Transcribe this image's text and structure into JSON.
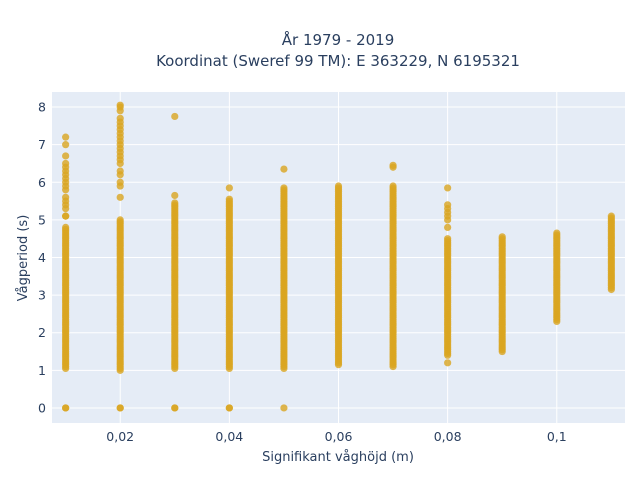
{
  "chart_data": {
    "type": "scatter",
    "title_line1": "År 1979 - 2019",
    "title_line2": "Koordinat (Sweref 99 TM): E 363229, N 6195321",
    "xlabel": "Signifikant våghöjd (m)",
    "ylabel": "Vågperiod (s)",
    "xlim": [
      0.0075,
      0.1125
    ],
    "ylim": [
      -0.4,
      8.4
    ],
    "x_ticks": [
      {
        "value": 0.02,
        "label": "0,02"
      },
      {
        "value": 0.04,
        "label": "0,04"
      },
      {
        "value": 0.06,
        "label": "0,06"
      },
      {
        "value": 0.08,
        "label": "0,08"
      },
      {
        "value": 0.1,
        "label": "0,1"
      }
    ],
    "y_ticks": [
      {
        "value": 0,
        "label": "0"
      },
      {
        "value": 1,
        "label": "1"
      },
      {
        "value": 2,
        "label": "2"
      },
      {
        "value": 3,
        "label": "3"
      },
      {
        "value": 4,
        "label": "4"
      },
      {
        "value": 5,
        "label": "5"
      },
      {
        "value": 6,
        "label": "6"
      },
      {
        "value": 7,
        "label": "7"
      },
      {
        "value": 8,
        "label": "8"
      }
    ],
    "grid": true,
    "legend": "none",
    "marker_color": "#DAA520",
    "background_color": "#E5ECF6",
    "series": [
      {
        "x": 0.01,
        "range": [
          1.05,
          4.8
        ],
        "points": [
          0,
          0,
          5.1,
          5.1,
          5.3,
          5.4,
          5.5,
          5.6,
          5.8,
          5.9,
          6.0,
          6.1,
          6.2,
          6.3,
          6.4,
          6.5,
          6.7,
          7.0,
          7.2
        ]
      },
      {
        "x": 0.02,
        "range": [
          1.0,
          5.0
        ],
        "points": [
          0,
          0,
          5.6,
          5.9,
          6.0,
          6.2,
          6.3,
          6.5,
          6.6,
          6.7,
          6.8,
          6.9,
          7.0,
          7.1,
          7.2,
          7.3,
          7.4,
          7.5,
          7.6,
          7.7,
          7.9,
          8.0,
          8.05
        ]
      },
      {
        "x": 0.03,
        "range": [
          1.05,
          5.45
        ],
        "points": [
          0,
          0,
          5.65,
          7.75
        ]
      },
      {
        "x": 0.04,
        "range": [
          1.05,
          5.55
        ],
        "points": [
          0,
          0,
          5.85
        ]
      },
      {
        "x": 0.05,
        "range": [
          1.05,
          5.85
        ],
        "points": [
          0,
          6.35
        ]
      },
      {
        "x": 0.06,
        "range": [
          1.15,
          5.9
        ],
        "points": []
      },
      {
        "x": 0.07,
        "range": [
          1.1,
          5.9
        ],
        "points": [
          6.4,
          6.45
        ]
      },
      {
        "x": 0.08,
        "range": [
          1.4,
          4.5
        ],
        "points": [
          1.2,
          4.8,
          5.0,
          5.1,
          5.2,
          5.3,
          5.4,
          5.85
        ]
      },
      {
        "x": 0.09,
        "range": [
          1.5,
          4.55
        ],
        "points": []
      },
      {
        "x": 0.1,
        "range": [
          2.3,
          4.65
        ],
        "points": []
      },
      {
        "x": 0.11,
        "range": [
          3.15,
          5.1
        ],
        "points": []
      }
    ]
  }
}
